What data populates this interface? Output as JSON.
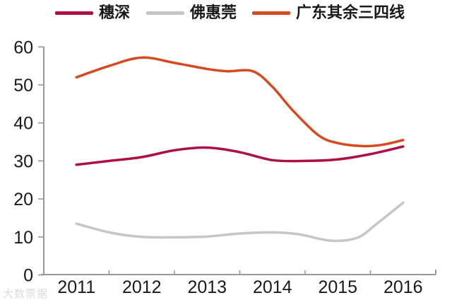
{
  "legend": {
    "items": [
      {
        "id": "sui-shen",
        "label": "穗深",
        "color": "#AD1043"
      },
      {
        "id": "fo-hui-guan",
        "label": "佛惠莞",
        "color": "#C6C6C6"
      },
      {
        "id": "guangdong-tier34",
        "label": "广东其余三四线",
        "color": "#D54A1E"
      }
    ]
  },
  "watermark": {
    "text": "大数票据"
  },
  "chart_data": {
    "type": "line",
    "title": "",
    "xlabel": "",
    "ylabel": "",
    "x_tick_labels": [
      "2011",
      "2012",
      "2013",
      "2014",
      "2015",
      "2016"
    ],
    "y_ticks": [
      0,
      10,
      20,
      30,
      40,
      50,
      60
    ],
    "ylim": [
      0,
      60
    ],
    "xlim": [
      2010.5,
      2016.5
    ],
    "grid": false,
    "legend_position": "top",
    "categories": [
      2011,
      2012,
      2013,
      2014,
      2015,
      2016
    ],
    "series": [
      {
        "id": "sui-shen",
        "name": "穗深",
        "color": "#AD1043",
        "values": [
          29,
          31,
          33.5,
          30.2,
          30.4,
          33.8
        ],
        "points": [
          [
            2011,
            29
          ],
          [
            2011.5,
            30
          ],
          [
            2012,
            31
          ],
          [
            2012.5,
            32.8
          ],
          [
            2013,
            33.5
          ],
          [
            2013.5,
            32.3
          ],
          [
            2014,
            30.2
          ],
          [
            2014.5,
            30
          ],
          [
            2015,
            30.4
          ],
          [
            2015.5,
            31.8
          ],
          [
            2016,
            33.8
          ]
        ]
      },
      {
        "id": "fo-hui-guan",
        "name": "佛惠莞",
        "color": "#C6C6C6",
        "values": [
          13.5,
          10,
          10.1,
          11.2,
          9.1,
          19
        ],
        "points": [
          [
            2011,
            13.5
          ],
          [
            2011.5,
            11.2
          ],
          [
            2012,
            10
          ],
          [
            2012.5,
            9.9
          ],
          [
            2013,
            10.1
          ],
          [
            2013.5,
            10.9
          ],
          [
            2014,
            11.2
          ],
          [
            2014.4,
            10.7
          ],
          [
            2014.9,
            9.0
          ],
          [
            2015.3,
            9.8
          ],
          [
            2015.6,
            13.5
          ],
          [
            2016,
            19
          ]
        ]
      },
      {
        "id": "guangdong-tier34",
        "name": "广东其余三四线",
        "color": "#D54A1E",
        "values": [
          52,
          57,
          54.2,
          49.5,
          34.7,
          35.5
        ],
        "points": [
          [
            2011,
            52
          ],
          [
            2011.5,
            55
          ],
          [
            2012,
            57.2
          ],
          [
            2012.5,
            55.8
          ],
          [
            2013,
            54.2
          ],
          [
            2013.3,
            53.6
          ],
          [
            2013.7,
            53.6
          ],
          [
            2014,
            49.5
          ],
          [
            2014.3,
            43.5
          ],
          [
            2014.7,
            36.8
          ],
          [
            2015,
            34.7
          ],
          [
            2015.4,
            33.9
          ],
          [
            2015.7,
            34.3
          ],
          [
            2016,
            35.5
          ]
        ]
      }
    ],
    "axis_color": "#999999",
    "tick_label_color": "#1a1a1a"
  }
}
